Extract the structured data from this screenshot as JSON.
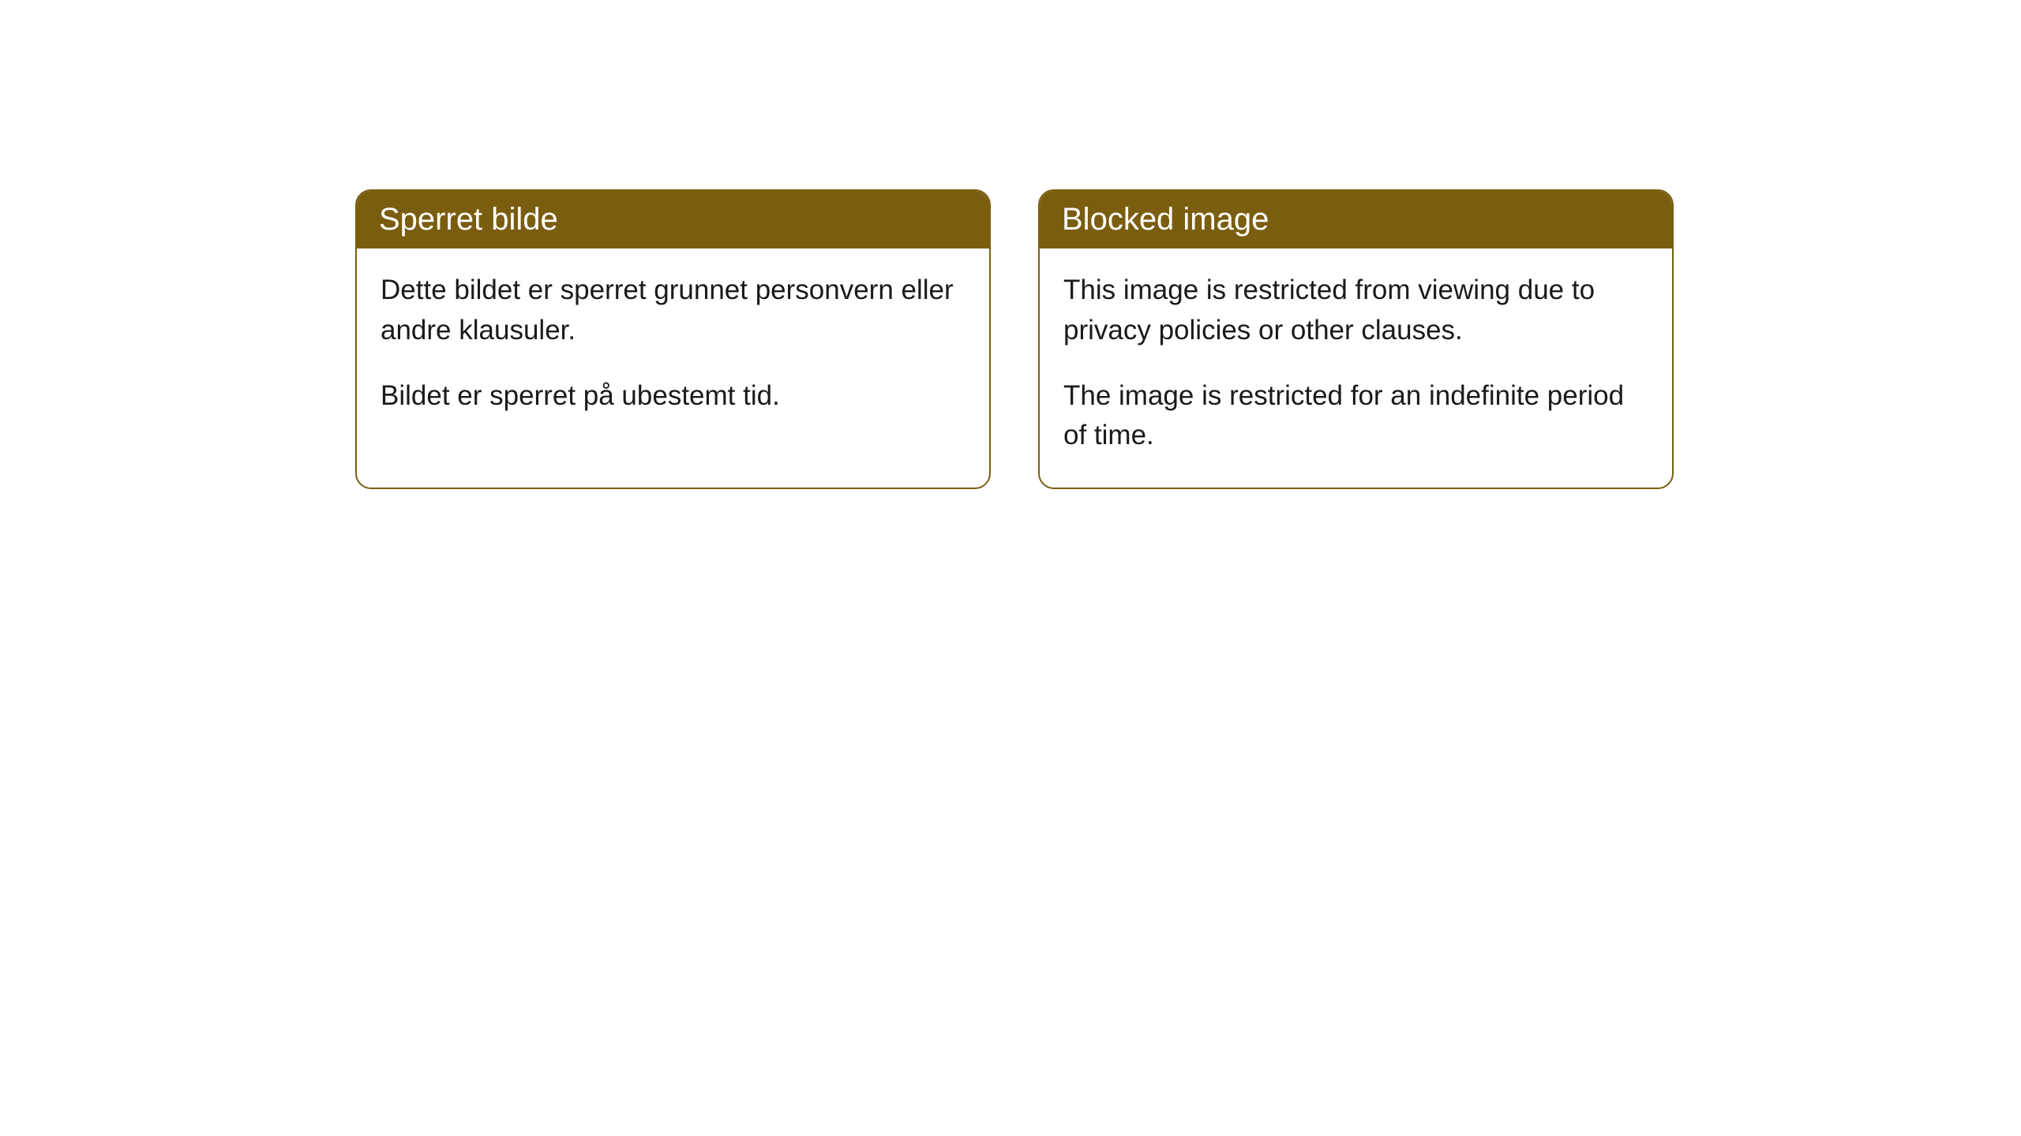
{
  "cards": [
    {
      "title": "Sperret bilde",
      "paragraph1": "Dette bildet er sperret grunnet personvern eller andre klausuler.",
      "paragraph2": "Bildet er sperret på ubestemt tid."
    },
    {
      "title": "Blocked image",
      "paragraph1": "This image is restricted from viewing due to privacy policies or other clauses.",
      "paragraph2": "The image is restricted for an indefinite period of time."
    }
  ],
  "colors": {
    "header_bg": "#7a5d0f",
    "header_text": "#ffffff",
    "border": "#7a5d0f",
    "body_text": "#1a1a1a",
    "page_bg": "#ffffff"
  }
}
